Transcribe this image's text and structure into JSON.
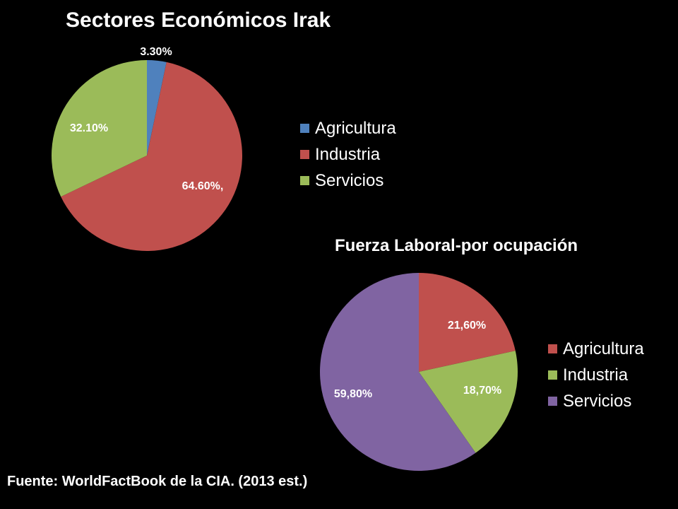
{
  "chart_data": [
    {
      "type": "pie",
      "title": "Sectores Económicos Irak",
      "categories": [
        "Agricultura",
        "Industria",
        "Servicios"
      ],
      "values": [
        3.3,
        64.6,
        32.1
      ],
      "labels": [
        "3.30%",
        "64.60%,",
        "32.10%"
      ],
      "colors": [
        "#4F81BD",
        "#C0504D",
        "#9BBB59"
      ],
      "legend": "right"
    },
    {
      "type": "pie",
      "title": "Fuerza Laboral-por ocupación",
      "categories": [
        "Agricultura",
        "Industria",
        "Servicios"
      ],
      "values": [
        21.6,
        18.7,
        59.8
      ],
      "labels": [
        "21,60%",
        "18,70%",
        "59,80%"
      ],
      "colors": [
        "#C0504D",
        "#9BBB59",
        "#8064A2"
      ],
      "legend": "right"
    }
  ],
  "footer": {
    "source": "Fuente: WorldFactBook de la CIA. (2013 est.)"
  }
}
